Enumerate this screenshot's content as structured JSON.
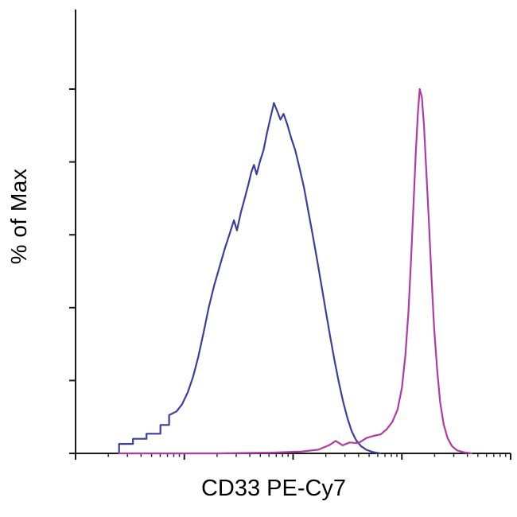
{
  "figure": {
    "background": "#ffffff",
    "description": "Flow cytometry histogram overlay of two cell populations"
  },
  "chart_data": {
    "type": "line",
    "subtype": "flow-cytometry-histogram-overlay",
    "title": "",
    "xlabel": "CD33 PE-Cy7",
    "ylabel": "% of Max",
    "axis_color": "#1a1a1a",
    "x_axis": {
      "scale": "log",
      "decades": 4,
      "tick_labels": []
    },
    "y_axis": {
      "range_percent": [
        0,
        100
      ],
      "ticks_percent": [
        0,
        20,
        40,
        60,
        80,
        100
      ],
      "tick_labels": []
    },
    "legend": "none",
    "grid": false,
    "series": [
      {
        "name": "blue-histogram",
        "color": "#3a3f9e",
        "peak_x_fraction": 0.456,
        "peak_percent_of_max": 96,
        "points": [
          [
            0.1,
            0.0
          ],
          [
            0.1,
            0.026
          ],
          [
            0.132,
            0.026
          ],
          [
            0.132,
            0.04
          ],
          [
            0.163,
            0.04
          ],
          [
            0.163,
            0.054
          ],
          [
            0.195,
            0.054
          ],
          [
            0.195,
            0.078
          ],
          [
            0.215,
            0.078
          ],
          [
            0.215,
            0.105
          ],
          [
            0.232,
            0.115
          ],
          [
            0.245,
            0.135
          ],
          [
            0.258,
            0.168
          ],
          [
            0.27,
            0.21
          ],
          [
            0.282,
            0.265
          ],
          [
            0.294,
            0.33
          ],
          [
            0.306,
            0.4
          ],
          [
            0.318,
            0.458
          ],
          [
            0.33,
            0.508
          ],
          [
            0.342,
            0.558
          ],
          [
            0.354,
            0.602
          ],
          [
            0.364,
            0.64
          ],
          [
            0.371,
            0.612
          ],
          [
            0.38,
            0.662
          ],
          [
            0.39,
            0.705
          ],
          [
            0.398,
            0.742
          ],
          [
            0.404,
            0.772
          ],
          [
            0.41,
            0.792
          ],
          [
            0.416,
            0.766
          ],
          [
            0.424,
            0.802
          ],
          [
            0.432,
            0.832
          ],
          [
            0.44,
            0.88
          ],
          [
            0.448,
            0.922
          ],
          [
            0.456,
            0.962
          ],
          [
            0.464,
            0.938
          ],
          [
            0.471,
            0.916
          ],
          [
            0.478,
            0.932
          ],
          [
            0.486,
            0.906
          ],
          [
            0.495,
            0.868
          ],
          [
            0.505,
            0.832
          ],
          [
            0.515,
            0.782
          ],
          [
            0.525,
            0.73
          ],
          [
            0.535,
            0.665
          ],
          [
            0.545,
            0.6
          ],
          [
            0.555,
            0.532
          ],
          [
            0.565,
            0.462
          ],
          [
            0.575,
            0.392
          ],
          [
            0.585,
            0.322
          ],
          [
            0.595,
            0.256
          ],
          [
            0.605,
            0.196
          ],
          [
            0.615,
            0.142
          ],
          [
            0.625,
            0.096
          ],
          [
            0.635,
            0.06
          ],
          [
            0.645,
            0.036
          ],
          [
            0.656,
            0.02
          ],
          [
            0.668,
            0.01
          ],
          [
            0.682,
            0.004
          ],
          [
            0.7,
            0.0
          ]
        ]
      },
      {
        "name": "magenta-histogram",
        "color": "#b23aa5",
        "peak_x_fraction": 0.791,
        "peak_percent_of_max": 100,
        "points": [
          [
            0.1,
            0.0
          ],
          [
            0.32,
            0.0
          ],
          [
            0.45,
            0.002
          ],
          [
            0.52,
            0.005
          ],
          [
            0.558,
            0.01
          ],
          [
            0.582,
            0.022
          ],
          [
            0.598,
            0.034
          ],
          [
            0.614,
            0.022
          ],
          [
            0.63,
            0.03
          ],
          [
            0.65,
            0.028
          ],
          [
            0.668,
            0.042
          ],
          [
            0.685,
            0.048
          ],
          [
            0.701,
            0.052
          ],
          [
            0.715,
            0.066
          ],
          [
            0.728,
            0.086
          ],
          [
            0.74,
            0.12
          ],
          [
            0.75,
            0.18
          ],
          [
            0.758,
            0.268
          ],
          [
            0.765,
            0.388
          ],
          [
            0.771,
            0.528
          ],
          [
            0.777,
            0.688
          ],
          [
            0.782,
            0.828
          ],
          [
            0.787,
            0.938
          ],
          [
            0.791,
            1.0
          ],
          [
            0.796,
            0.978
          ],
          [
            0.801,
            0.898
          ],
          [
            0.806,
            0.778
          ],
          [
            0.812,
            0.638
          ],
          [
            0.818,
            0.488
          ],
          [
            0.824,
            0.348
          ],
          [
            0.831,
            0.23
          ],
          [
            0.838,
            0.14
          ],
          [
            0.846,
            0.08
          ],
          [
            0.855,
            0.042
          ],
          [
            0.865,
            0.02
          ],
          [
            0.877,
            0.008
          ],
          [
            0.892,
            0.003
          ],
          [
            0.91,
            0.0
          ]
        ]
      }
    ]
  }
}
